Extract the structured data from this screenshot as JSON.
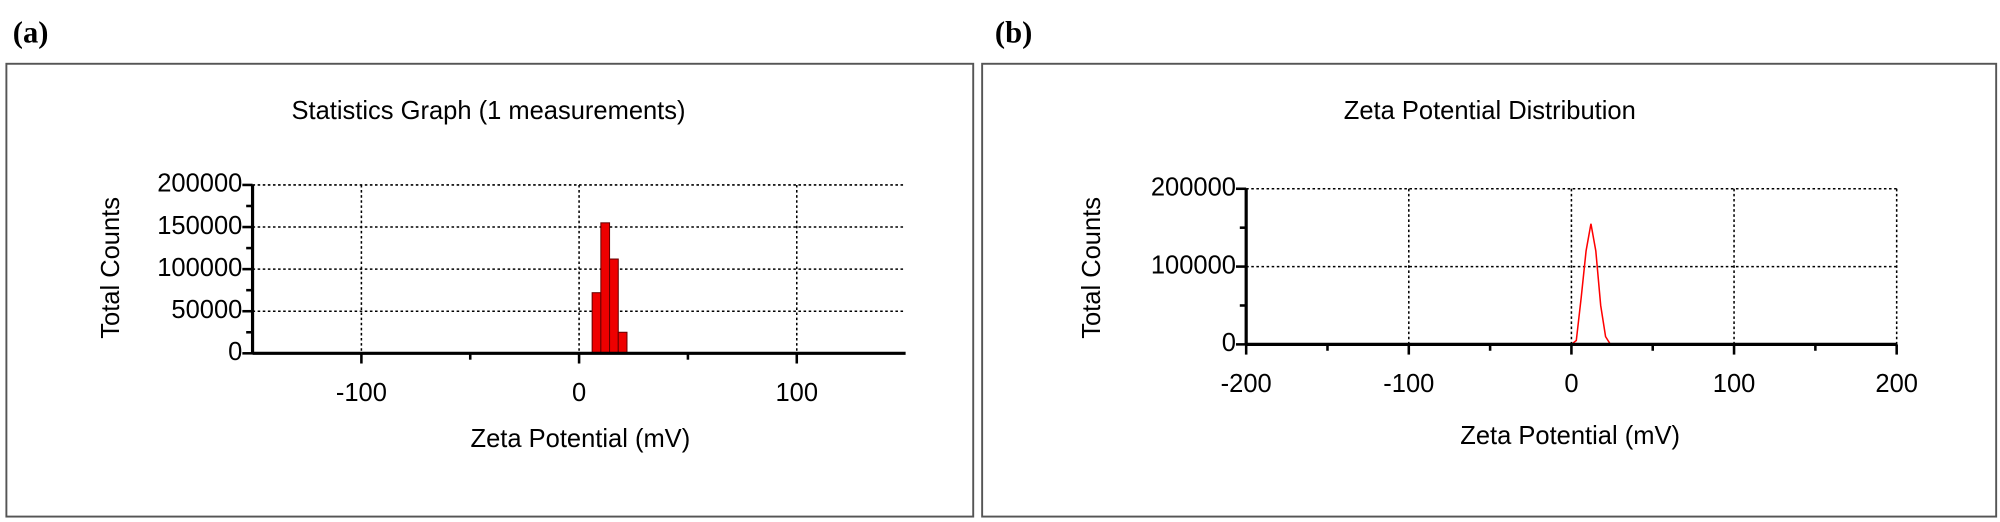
{
  "chart_data": [
    {
      "type": "histogram",
      "panel_label": "(a)",
      "title": "Statistics Graph (1 measurements)",
      "x_label": "Zeta Potential (mV)",
      "y_label": "Total Counts",
      "bins": [
        6,
        10,
        14,
        18,
        22
      ],
      "values": [
        72000,
        155000,
        112000,
        25000
      ],
      "color": "#ee0000",
      "xlim": [
        -150,
        150
      ],
      "xticks": [
        -100,
        0,
        100
      ],
      "minor_xticks": [
        -50,
        50
      ],
      "ylim": [
        0,
        200000
      ],
      "yticks": [
        0,
        50000,
        100000,
        150000,
        200000
      ],
      "minor_yticks": [
        25000,
        75000,
        125000,
        175000
      ],
      "grid": true
    },
    {
      "type": "line",
      "panel_label": "(b)",
      "title": "Zeta Potential Distribution",
      "x_label": "Zeta Potential (mV)",
      "y_label": "Total Counts",
      "x": [
        -150,
        -100,
        -50,
        0,
        3,
        6,
        9,
        12,
        15,
        18,
        21,
        24,
        50,
        100,
        150
      ],
      "series": [
        {
          "name": "Zeta Potential Distribution",
          "color": "#ff0000",
          "values": [
            0,
            0,
            0,
            0,
            5000,
            60000,
            120000,
            155000,
            120000,
            50000,
            10000,
            0,
            0,
            0,
            0
          ]
        }
      ],
      "xlim": [
        -200,
        200
      ],
      "xticks": [
        -200,
        -100,
        0,
        100,
        200
      ],
      "minor_xticks": [
        -150,
        -50,
        50,
        150
      ],
      "ylim": [
        0,
        200000
      ],
      "yticks": [
        0,
        100000,
        200000
      ],
      "minor_yticks": [
        50000,
        150000
      ],
      "grid": true
    }
  ]
}
